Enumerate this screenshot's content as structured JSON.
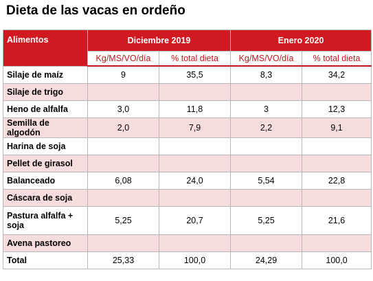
{
  "title": "Dieta de las vacas en ordeño",
  "table": {
    "col_name_header": "Alimentos",
    "groups": [
      "Diciembre 2019",
      "Enero 2020"
    ],
    "subheaders": [
      "Kg/MS/VO/día",
      "% total dieta",
      "Kg/MS/VO/día",
      "% total dieta"
    ],
    "rows": [
      {
        "name": "Silaje de maíz",
        "cells": [
          "9",
          "35,5",
          "8,3",
          "34,2"
        ]
      },
      {
        "name": "Silaje de trigo",
        "cells": [
          "",
          "",
          "",
          ""
        ]
      },
      {
        "name": "Heno de alfalfa",
        "cells": [
          "3,0",
          "11,8",
          "3",
          "12,3"
        ]
      },
      {
        "name": "Semilla de algodón",
        "cells": [
          "2,0",
          "7,9",
          "2,2",
          "9,1"
        ]
      },
      {
        "name": "Harina de soja",
        "cells": [
          "",
          "",
          "",
          ""
        ]
      },
      {
        "name": "Pellet de girasol",
        "cells": [
          "",
          "",
          "",
          ""
        ]
      },
      {
        "name": "Balanceado",
        "cells": [
          "6,08",
          "24,0",
          "5,54",
          "22,8"
        ]
      },
      {
        "name": "Cáscara de soja",
        "cells": [
          "",
          "",
          "",
          ""
        ]
      },
      {
        "name": "Pastura alfalfa + soja",
        "cells": [
          "5,25",
          "20,7",
          "5,25",
          "21,6"
        ]
      },
      {
        "name": "Avena pastoreo",
        "cells": [
          "",
          "",
          "",
          ""
        ]
      }
    ],
    "total": {
      "name": "Total",
      "cells": [
        "25,33",
        "100,0",
        "24,29",
        "100,0"
      ]
    }
  },
  "colors": {
    "header_red": "#d11921",
    "band_pink": "#f7dcdd",
    "subheader_text": "#c0161d"
  }
}
